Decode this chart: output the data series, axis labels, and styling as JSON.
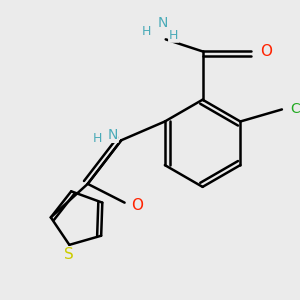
{
  "background_color": "#ebebeb",
  "atom_colors": {
    "N": "#4aabb8",
    "O": "#ff2200",
    "S": "#cccc00",
    "Cl": "#22aa22"
  },
  "bond_lw": 1.8,
  "font_size": 10,
  "figsize": [
    3.0,
    3.0
  ],
  "dpi": 100,
  "xlim": [
    -0.5,
    3.8
  ],
  "ylim": [
    -3.2,
    1.2
  ]
}
